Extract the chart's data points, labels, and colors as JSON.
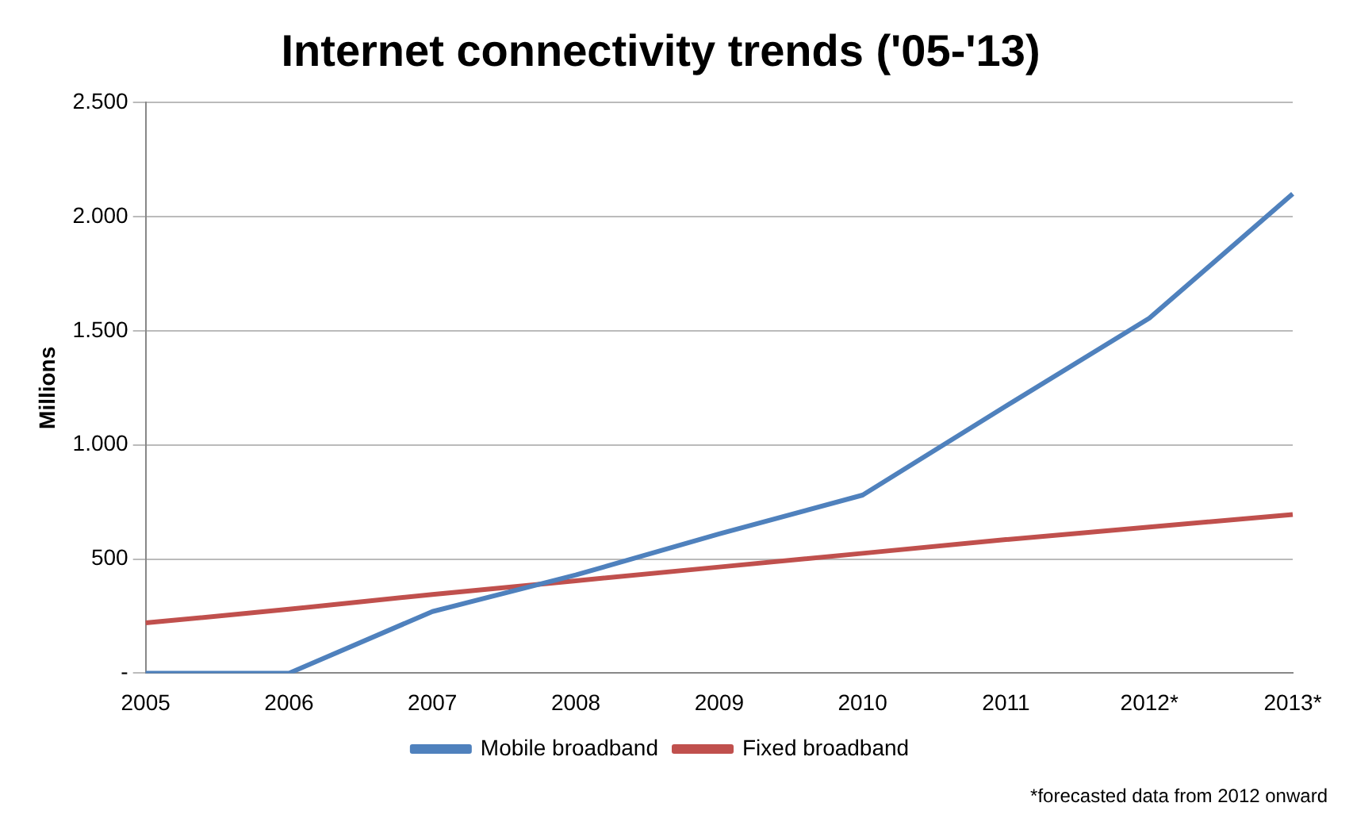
{
  "chart_data": {
    "type": "line",
    "title": "Internet connectivity trends ('05-'13)",
    "ylabel": "Millions",
    "categories": [
      "2005",
      "2006",
      "2007",
      "2008",
      "2009",
      "2010",
      "2011",
      "2012*",
      "2013*"
    ],
    "series": [
      {
        "name": "Mobile broadband",
        "color": "#4f81bd",
        "values": [
          0,
          0,
          270,
          430,
          610,
          780,
          1170,
          1555,
          2100
        ]
      },
      {
        "name": "Fixed broadband",
        "color": "#c0504d",
        "values": [
          220,
          280,
          345,
          405,
          465,
          525,
          585,
          640,
          695
        ]
      }
    ],
    "ylim": [
      0,
      2500
    ],
    "yticks": [
      {
        "value": 0,
        "label": "-"
      },
      500,
      {
        "value": 1000,
        "label": "1.000"
      },
      {
        "value": 1500,
        "label": "1.500"
      },
      {
        "value": 2000,
        "label": "2.000"
      },
      {
        "value": 2500,
        "label": "2.500"
      }
    ],
    "grid": "y",
    "legend": "bottom",
    "marker": "none",
    "line_style": "solid",
    "annotations": [
      "*forecasted data from 2012 onward"
    ]
  }
}
